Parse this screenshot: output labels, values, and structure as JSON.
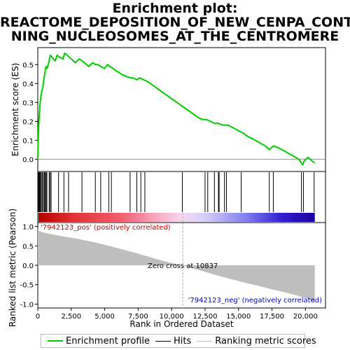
{
  "title_lines": [
    "Enrichment plot:",
    "REACTOME_DEPOSITION_OF_NEW_CENPA_CONTAI",
    "NING_NUCLEOSOMES_AT_THE_CENTROMERE"
  ],
  "colors": {
    "profile": "#00cc00",
    "hits": "#000000",
    "metric_fill": "#bebebe",
    "pos_label": "#cc0000",
    "neg_label": "#0000cc",
    "zero_cross_line": "#aaaaaa"
  },
  "chart_data": [
    {
      "type": "line",
      "ylabel": "Enrichment score (ES)",
      "xlim": [
        0,
        21500
      ],
      "ylim": [
        -0.065,
        0.59
      ],
      "yticks": [
        0.0,
        0.1,
        0.2,
        0.3,
        0.4,
        0.5
      ],
      "ytick_labels": [
        "0.0",
        "0.1",
        "0.2",
        "0.3",
        "0.4",
        "0.5"
      ],
      "series": [
        {
          "name": "Enrichment profile",
          "x": [
            0,
            40,
            80,
            130,
            180,
            230,
            300,
            380,
            450,
            520,
            580,
            640,
            700,
            780,
            850,
            900,
            960,
            1050,
            1300,
            1450,
            1600,
            1900,
            2000,
            2200,
            2500,
            2800,
            3100,
            3300,
            3500,
            3800,
            4100,
            4300,
            4500,
            4700,
            5000,
            5200,
            5400,
            5600,
            6000,
            6500,
            6900,
            7100,
            7400,
            7600,
            7900,
            8200,
            9000,
            10000,
            11000,
            12000,
            12300,
            12600,
            12900,
            13200,
            13500,
            13800,
            14000,
            14200,
            14500,
            15000,
            15300,
            15700,
            16000,
            16500,
            17000,
            17300,
            17600,
            18000,
            18500,
            19000,
            19500,
            19800,
            19900,
            20200,
            20500,
            20700
          ],
          "y": [
            0.0,
            0.12,
            0.2,
            0.25,
            0.3,
            0.33,
            0.36,
            0.38,
            0.42,
            0.45,
            0.48,
            0.49,
            0.48,
            0.5,
            0.52,
            0.54,
            0.55,
            0.54,
            0.52,
            0.55,
            0.54,
            0.53,
            0.56,
            0.55,
            0.53,
            0.51,
            0.53,
            0.52,
            0.51,
            0.49,
            0.51,
            0.5,
            0.5,
            0.49,
            0.48,
            0.5,
            0.49,
            0.48,
            0.46,
            0.44,
            0.43,
            0.43,
            0.42,
            0.43,
            0.42,
            0.41,
            0.37,
            0.32,
            0.27,
            0.22,
            0.21,
            0.21,
            0.2,
            0.19,
            0.19,
            0.18,
            0.18,
            0.18,
            0.17,
            0.15,
            0.14,
            0.12,
            0.11,
            0.09,
            0.07,
            0.05,
            0.07,
            0.06,
            0.04,
            0.02,
            0.0,
            -0.03,
            -0.01,
            0.01,
            -0.01,
            -0.02
          ]
        }
      ]
    },
    {
      "type": "hits",
      "series": [
        {
          "name": "Hits",
          "x": [
            20,
            60,
            110,
            160,
            200,
            270,
            350,
            420,
            500,
            560,
            620,
            680,
            850,
            920,
            1000,
            1550,
            1950,
            2300,
            3300,
            4300,
            4700,
            5300,
            5500,
            6900,
            7400,
            7700,
            8000,
            10800,
            12500,
            12700,
            13200,
            13500,
            13550,
            13950,
            14100,
            15200,
            17300,
            17600,
            19700,
            19850,
            20650
          ]
        }
      ]
    },
    {
      "type": "area",
      "xlabel": "Rank in Ordered Dataset",
      "ylabel": "Ranked list metric (Pearson)",
      "xlim": [
        0,
        21500
      ],
      "ylim": [
        -1.1,
        1.1
      ],
      "xticks": [
        0,
        2500,
        5000,
        7500,
        10000,
        12500,
        15000,
        17500,
        20000
      ],
      "xtick_labels": [
        "0",
        "2,500",
        "5,000",
        "7,500",
        "10,000",
        "12,500",
        "15,000",
        "17,500",
        "20,000"
      ],
      "yticks": [
        1.0,
        0.5,
        0.0,
        -0.5,
        -1.0
      ],
      "ytick_labels": [
        "1.0",
        "0.5",
        "0.0",
        "-0.5",
        "-1.0"
      ],
      "series": [
        {
          "name": "Ranking metric scores",
          "x": [
            0,
            50,
            200,
            500,
            1000,
            2000,
            3000,
            4000,
            5000,
            6000,
            7000,
            8000,
            9000,
            10000,
            10837,
            11500,
            12500,
            13500,
            14500,
            15500,
            16500,
            17500,
            18500,
            19500,
            20200,
            20500,
            20700
          ],
          "y": [
            0.95,
            0.9,
            0.87,
            0.84,
            0.8,
            0.74,
            0.68,
            0.61,
            0.53,
            0.44,
            0.35,
            0.25,
            0.15,
            0.06,
            0.0,
            -0.07,
            -0.17,
            -0.27,
            -0.36,
            -0.45,
            -0.53,
            -0.62,
            -0.7,
            -0.79,
            -0.86,
            -0.92,
            -0.97
          ]
        }
      ]
    }
  ],
  "annotations": {
    "pos_label": "'7942123_pos' (positively correlated)",
    "neg_label": "'7942123_neg' (negatively correlated)",
    "zero_cross": "Zero cross at 10837",
    "zero_cross_x": 10837
  },
  "legend": {
    "items": [
      {
        "label": "Enrichment profile",
        "color": "#00cc00"
      },
      {
        "label": "Hits",
        "color": "#000000"
      },
      {
        "label": "Ranking metric scores",
        "color": "#bebebe"
      }
    ]
  }
}
